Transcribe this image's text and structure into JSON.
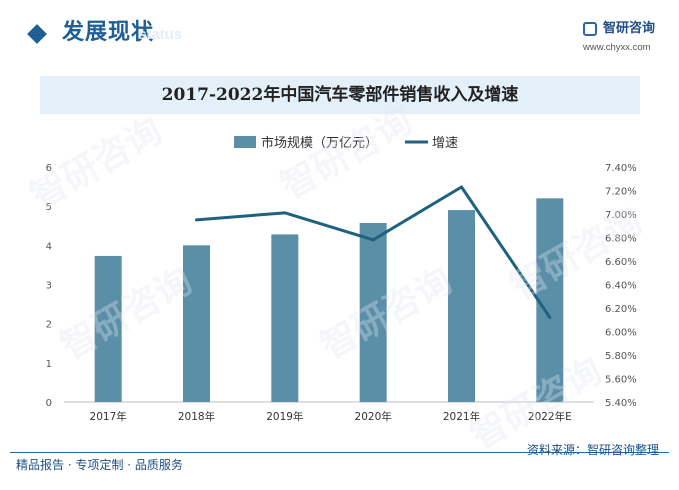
{
  "header": {
    "title": "发展现状",
    "subtitle": "status"
  },
  "logo": {
    "name": "智研咨询",
    "url": "www.chyxx.com"
  },
  "footer": {
    "left": "精品报告 · 专项定制 · 品质服务",
    "source": "资料来源：智研咨询整理"
  },
  "watermark_text": "智研咨询",
  "colors": {
    "bar": "#5b8fa8",
    "line": "#1e6180",
    "brand": "#1f5f96",
    "title_band": "#e3f0f9"
  },
  "chart_data": {
    "type": "bar",
    "title": "2017-2022年中国汽车零部件销售收入及增速",
    "categories": [
      "2017年",
      "2018年",
      "2019年",
      "2020年",
      "2021年",
      "2022年E"
    ],
    "series": [
      {
        "name": "市场规模（万亿元）",
        "type": "bar",
        "axis": "left",
        "values": [
          3.73,
          4.0,
          4.28,
          4.57,
          4.9,
          5.2
        ]
      },
      {
        "name": "增速",
        "type": "line",
        "axis": "right",
        "values": [
          null,
          0.0695,
          0.0701,
          0.0678,
          0.0723,
          0.0612
        ]
      }
    ],
    "yleft": {
      "ylim": [
        0,
        6
      ],
      "ticks": [
        "0",
        "1",
        "2",
        "3",
        "4",
        "5",
        "6"
      ]
    },
    "yright": {
      "ylim": [
        0.054,
        0.074
      ],
      "ticks": [
        "5.40%",
        "5.60%",
        "5.80%",
        "6.00%",
        "6.20%",
        "6.40%",
        "6.60%",
        "6.80%",
        "7.00%",
        "7.20%",
        "7.40%"
      ]
    },
    "legend": "top-center",
    "grid": false
  }
}
